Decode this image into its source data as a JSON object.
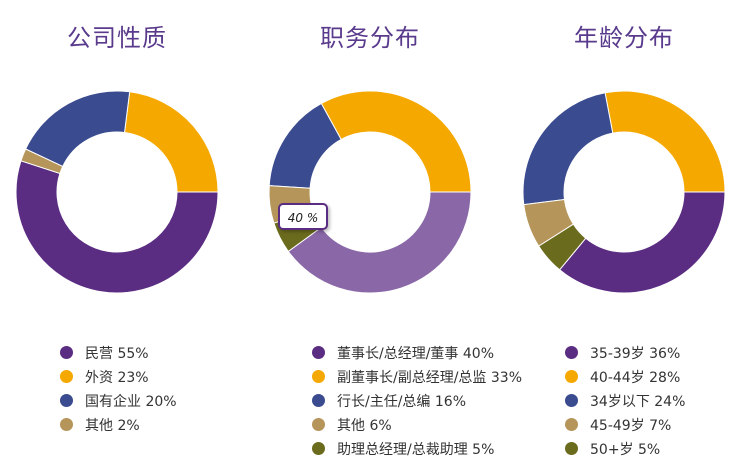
{
  "colors": {
    "purple": "#5b2d82",
    "orange": "#f5a800",
    "blue": "#3a4b8f",
    "tan": "#b6955a",
    "olive": "#6b6b1e",
    "highlight_purple": "#8a68a8",
    "title": "#5a3a8c"
  },
  "chart_data": [
    {
      "type": "pie",
      "style": "donut",
      "title": "公司性质",
      "legend_position": "bottom",
      "categories": [
        "民营",
        "外资",
        "国有企业",
        "其他"
      ],
      "values": [
        55,
        23,
        20,
        2
      ],
      "labels": [
        "民营 55%",
        "外资 23%",
        "国有企业 20%",
        "其他 2%"
      ],
      "colors": [
        "#5b2d82",
        "#f5a800",
        "#3a4b8f",
        "#b6955a"
      ]
    },
    {
      "type": "pie",
      "style": "donut",
      "title": "职务分布",
      "legend_position": "bottom",
      "categories": [
        "董事长/总经理/董事",
        "副董事长/副总经理/总监",
        "行长/主任/总编",
        "其他",
        "助理总经理/总裁助理"
      ],
      "values": [
        40,
        33,
        16,
        6,
        5
      ],
      "labels": [
        "董事长/总经理/董事 40%",
        "副董事长/副总经理/总监 33%",
        "行长/主任/总编 16%",
        "其他 6%",
        "助理总经理/总裁助理 5%"
      ],
      "colors": [
        "#5b2d82",
        "#f5a800",
        "#3a4b8f",
        "#b6955a",
        "#6b6b1e"
      ],
      "highlighted_index": 0,
      "highlight_color": "#8a68a8",
      "tooltip": "40 %"
    },
    {
      "type": "pie",
      "style": "donut",
      "title": "年龄分布",
      "legend_position": "bottom",
      "categories": [
        "35-39岁",
        "40-44岁",
        "34岁以下",
        "45-49岁",
        "50+岁"
      ],
      "values": [
        36,
        28,
        24,
        7,
        5
      ],
      "labels": [
        "35-39岁 36%",
        "40-44岁 28%",
        "34岁以下 24%",
        "45-49岁 7%",
        "50+岁 5%"
      ],
      "colors": [
        "#5b2d82",
        "#f5a800",
        "#3a4b8f",
        "#b6955a",
        "#6b6b1e"
      ]
    }
  ]
}
